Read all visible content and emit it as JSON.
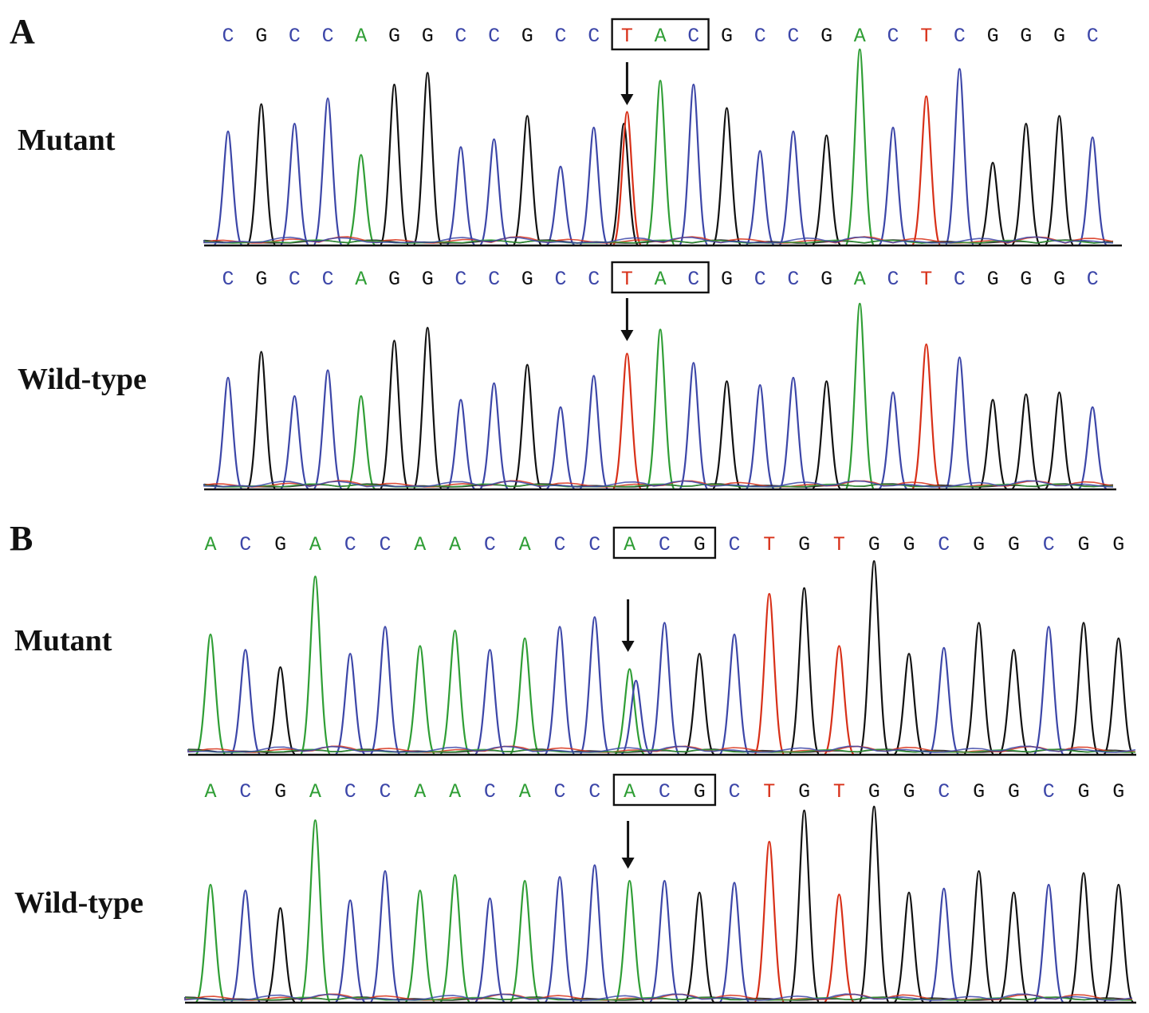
{
  "colors": {
    "C": "#3c46a8",
    "G": "#111111",
    "A": "#2f9e35",
    "T": "#d83018"
  },
  "panels": [
    {
      "letter": "A",
      "rows": [
        {
          "label": "Mutant",
          "sequence": [
            "C",
            "G",
            "C",
            "C",
            "A",
            "G",
            "G",
            "C",
            "C",
            "G",
            "C",
            "C",
            "T",
            "A",
            "C",
            "G",
            "C",
            "C",
            "G",
            "A",
            "C",
            "T",
            "C",
            "G",
            "G",
            "G",
            "C"
          ],
          "boxed_codon": "TAC",
          "box_start_index": 12,
          "arrow_base_index": 12,
          "peaks": [
            {
              "base": "C",
              "h": 0.58
            },
            {
              "base": "G",
              "h": 0.72
            },
            {
              "base": "C",
              "h": 0.62
            },
            {
              "base": "C",
              "h": 0.75
            },
            {
              "base": "A",
              "h": 0.46
            },
            {
              "base": "G",
              "h": 0.82
            },
            {
              "base": "G",
              "h": 0.88
            },
            {
              "base": "C",
              "h": 0.5
            },
            {
              "base": "C",
              "h": 0.54
            },
            {
              "base": "G",
              "h": 0.66
            },
            {
              "base": "C",
              "h": 0.4
            },
            {
              "base": "C",
              "h": 0.6
            },
            {
              "base": "T",
              "h": 0.68,
              "overlap": {
                "base": "G",
                "h": 0.62
              }
            },
            {
              "base": "A",
              "h": 0.84
            },
            {
              "base": "C",
              "h": 0.82
            },
            {
              "base": "G",
              "h": 0.7
            },
            {
              "base": "C",
              "h": 0.48
            },
            {
              "base": "C",
              "h": 0.58
            },
            {
              "base": "G",
              "h": 0.56
            },
            {
              "base": "A",
              "h": 1.0
            },
            {
              "base": "C",
              "h": 0.6
            },
            {
              "base": "T",
              "h": 0.76
            },
            {
              "base": "C",
              "h": 0.9
            },
            {
              "base": "G",
              "h": 0.42
            },
            {
              "base": "G",
              "h": 0.62
            },
            {
              "base": "G",
              "h": 0.66
            },
            {
              "base": "C",
              "h": 0.55
            }
          ]
        },
        {
          "label": "Wild-type",
          "sequence": [
            "C",
            "G",
            "C",
            "C",
            "A",
            "G",
            "G",
            "C",
            "C",
            "G",
            "C",
            "C",
            "T",
            "A",
            "C",
            "G",
            "C",
            "C",
            "G",
            "A",
            "C",
            "T",
            "C",
            "G",
            "G",
            "G",
            "C"
          ],
          "boxed_codon": "TAC",
          "box_start_index": 12,
          "arrow_base_index": 12,
          "peaks": [
            {
              "base": "C",
              "h": 0.6
            },
            {
              "base": "G",
              "h": 0.74
            },
            {
              "base": "C",
              "h": 0.5
            },
            {
              "base": "C",
              "h": 0.64
            },
            {
              "base": "A",
              "h": 0.5
            },
            {
              "base": "G",
              "h": 0.8
            },
            {
              "base": "G",
              "h": 0.87
            },
            {
              "base": "C",
              "h": 0.48
            },
            {
              "base": "C",
              "h": 0.57
            },
            {
              "base": "G",
              "h": 0.67
            },
            {
              "base": "C",
              "h": 0.44
            },
            {
              "base": "C",
              "h": 0.61
            },
            {
              "base": "T",
              "h": 0.73
            },
            {
              "base": "A",
              "h": 0.86
            },
            {
              "base": "C",
              "h": 0.68
            },
            {
              "base": "G",
              "h": 0.58
            },
            {
              "base": "C",
              "h": 0.56
            },
            {
              "base": "C",
              "h": 0.6
            },
            {
              "base": "G",
              "h": 0.58
            },
            {
              "base": "A",
              "h": 1.0
            },
            {
              "base": "C",
              "h": 0.52
            },
            {
              "base": "T",
              "h": 0.78
            },
            {
              "base": "C",
              "h": 0.71
            },
            {
              "base": "G",
              "h": 0.48
            },
            {
              "base": "G",
              "h": 0.51
            },
            {
              "base": "G",
              "h": 0.52
            },
            {
              "base": "C",
              "h": 0.44
            }
          ]
        }
      ]
    },
    {
      "letter": "B",
      "rows": [
        {
          "label": "Mutant",
          "sequence": [
            "A",
            "C",
            "G",
            "A",
            "C",
            "C",
            "A",
            "A",
            "C",
            "A",
            "C",
            "C",
            "A",
            "C",
            "G",
            "C",
            "T",
            "G",
            "T",
            "G",
            "G",
            "C",
            "G",
            "G",
            "C",
            "G",
            "G"
          ],
          "boxed_codon": "ACG",
          "box_start_index": 12,
          "arrow_base_index": 12,
          "peaks": [
            {
              "base": "A",
              "h": 0.62
            },
            {
              "base": "C",
              "h": 0.54
            },
            {
              "base": "G",
              "h": 0.45
            },
            {
              "base": "A",
              "h": 0.92
            },
            {
              "base": "C",
              "h": 0.52
            },
            {
              "base": "C",
              "h": 0.66
            },
            {
              "base": "A",
              "h": 0.56
            },
            {
              "base": "A",
              "h": 0.64
            },
            {
              "base": "C",
              "h": 0.54
            },
            {
              "base": "A",
              "h": 0.6
            },
            {
              "base": "C",
              "h": 0.66
            },
            {
              "base": "C",
              "h": 0.71
            },
            {
              "base": "A",
              "h": 0.44,
              "overlap": {
                "base": "C",
                "h": 0.38
              }
            },
            {
              "base": "C",
              "h": 0.68
            },
            {
              "base": "G",
              "h": 0.52
            },
            {
              "base": "C",
              "h": 0.62
            },
            {
              "base": "T",
              "h": 0.83
            },
            {
              "base": "G",
              "h": 0.86
            },
            {
              "base": "T",
              "h": 0.56
            },
            {
              "base": "G",
              "h": 1.0
            },
            {
              "base": "G",
              "h": 0.52
            },
            {
              "base": "C",
              "h": 0.55
            },
            {
              "base": "G",
              "h": 0.68
            },
            {
              "base": "G",
              "h": 0.54
            },
            {
              "base": "C",
              "h": 0.66
            },
            {
              "base": "G",
              "h": 0.68
            },
            {
              "base": "G",
              "h": 0.6
            }
          ]
        },
        {
          "label": "Wild-type",
          "sequence": [
            "A",
            "C",
            "G",
            "A",
            "C",
            "C",
            "A",
            "A",
            "C",
            "A",
            "C",
            "C",
            "A",
            "C",
            "G",
            "C",
            "T",
            "G",
            "T",
            "G",
            "G",
            "C",
            "G",
            "G",
            "C",
            "G",
            "G"
          ],
          "boxed_codon": "ACG",
          "box_start_index": 12,
          "arrow_base_index": 12,
          "peaks": [
            {
              "base": "A",
              "h": 0.6
            },
            {
              "base": "C",
              "h": 0.57
            },
            {
              "base": "G",
              "h": 0.48
            },
            {
              "base": "A",
              "h": 0.93
            },
            {
              "base": "C",
              "h": 0.52
            },
            {
              "base": "C",
              "h": 0.67
            },
            {
              "base": "A",
              "h": 0.57
            },
            {
              "base": "A",
              "h": 0.65
            },
            {
              "base": "C",
              "h": 0.53
            },
            {
              "base": "A",
              "h": 0.62
            },
            {
              "base": "C",
              "h": 0.64
            },
            {
              "base": "C",
              "h": 0.7
            },
            {
              "base": "A",
              "h": 0.62
            },
            {
              "base": "C",
              "h": 0.62
            },
            {
              "base": "G",
              "h": 0.56
            },
            {
              "base": "C",
              "h": 0.61
            },
            {
              "base": "T",
              "h": 0.82
            },
            {
              "base": "G",
              "h": 0.98
            },
            {
              "base": "T",
              "h": 0.55
            },
            {
              "base": "G",
              "h": 1.0
            },
            {
              "base": "G",
              "h": 0.56
            },
            {
              "base": "C",
              "h": 0.58
            },
            {
              "base": "G",
              "h": 0.67
            },
            {
              "base": "G",
              "h": 0.56
            },
            {
              "base": "C",
              "h": 0.6
            },
            {
              "base": "G",
              "h": 0.66
            },
            {
              "base": "G",
              "h": 0.6
            }
          ]
        }
      ]
    }
  ],
  "chart_data": {
    "type": "line",
    "title": "",
    "charts": [
      {
        "panel": "A",
        "row": "Mutant",
        "sequence": "CGCCAGGCCGCCTACGCCGACTCGGGC",
        "highlight_codon": "TAC",
        "arrow_at_position": 13,
        "heterozygous_position": 13
      },
      {
        "panel": "A",
        "row": "Wild-type",
        "sequence": "CGCCAGGCCGCCTACGCCGACTCGGGC",
        "highlight_codon": "TAC",
        "arrow_at_position": 13
      },
      {
        "panel": "B",
        "row": "Mutant",
        "sequence": "ACGACCAACACCACGCTGTGGCGGCGG",
        "highlight_codon": "ACG",
        "arrow_at_position": 13,
        "heterozygous_position": 13
      },
      {
        "panel": "B",
        "row": "Wild-type",
        "sequence": "ACGACCAACACCACGCTGTGGCGGCGG",
        "highlight_codon": "ACG",
        "arrow_at_position": 13
      }
    ]
  }
}
